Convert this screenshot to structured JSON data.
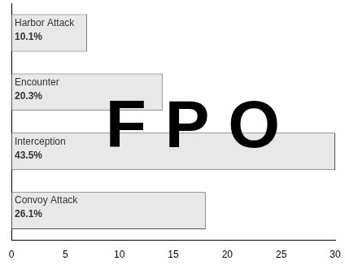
{
  "chart_data": {
    "type": "bar",
    "orientation": "horizontal",
    "categories": [
      "Harbor Attack",
      "Encounter",
      "Interception",
      "Convoy Attack"
    ],
    "values": [
      7,
      14,
      30,
      18
    ],
    "bar_labels": [
      "10.1%",
      "20.3%",
      "43.5%",
      "26.1%"
    ],
    "color": "#e8e8e8",
    "xlim": [
      0,
      30
    ],
    "xticks": [
      0,
      5,
      10,
      15,
      20,
      25,
      30
    ],
    "grid": false,
    "tick_labels": "x",
    "annotation": "F P O"
  }
}
